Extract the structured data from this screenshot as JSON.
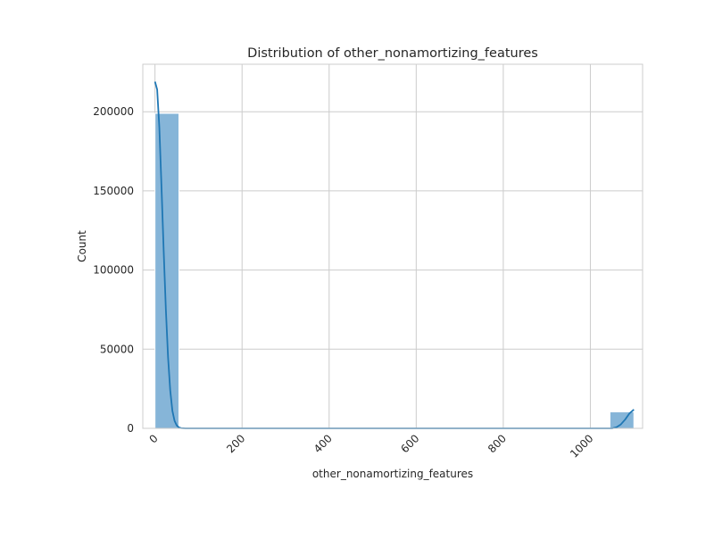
{
  "chart_data": {
    "type": "bar",
    "title": "Distribution of other_nonamortizing_features",
    "xlabel": "other_nonamortizing_features",
    "ylabel": "Count",
    "xlim": [
      -28,
      1120
    ],
    "ylim": [
      0,
      230000
    ],
    "xticks": [
      0,
      200,
      400,
      600,
      800,
      1000
    ],
    "yticks": [
      0,
      50000,
      100000,
      150000,
      200000
    ],
    "grid": true,
    "bins": [
      {
        "x0": 0,
        "x1": 55,
        "count": 199000
      },
      {
        "x0": 1045,
        "x1": 1100,
        "count": 10400
      }
    ],
    "kde": [
      [
        0,
        219000
      ],
      [
        5,
        214000
      ],
      [
        10,
        190000
      ],
      [
        15,
        152000
      ],
      [
        20,
        112000
      ],
      [
        25,
        75000
      ],
      [
        30,
        45000
      ],
      [
        35,
        24000
      ],
      [
        40,
        11000
      ],
      [
        45,
        4700
      ],
      [
        50,
        1800
      ],
      [
        55,
        600
      ],
      [
        60,
        150
      ],
      [
        70,
        0
      ],
      [
        1050,
        0
      ],
      [
        1060,
        700
      ],
      [
        1070,
        2500
      ],
      [
        1080,
        5600
      ],
      [
        1090,
        9500
      ],
      [
        1100,
        11900
      ]
    ],
    "colors": {
      "bar_fill": "#86b5d8",
      "bar_stroke": "#ffffff",
      "kde_line": "#1f77b4",
      "grid": "#cccccc",
      "frame": "#cccccc",
      "text": "#262626"
    }
  }
}
